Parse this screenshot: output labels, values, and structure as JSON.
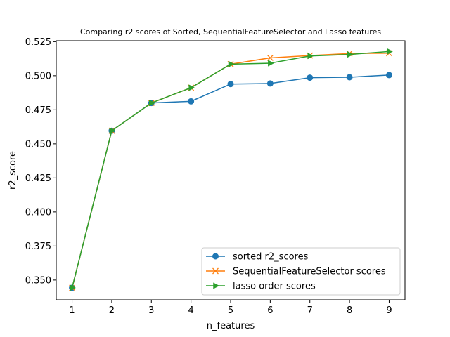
{
  "chart_data": {
    "type": "line",
    "title": "Comparing r2 scores of Sorted, SequentialFeatureSelector and Lasso features",
    "xlabel": "n_features",
    "ylabel": "r2_score",
    "x": [
      1,
      2,
      3,
      4,
      5,
      6,
      7,
      8,
      9
    ],
    "xticks": [
      "1",
      "2",
      "3",
      "4",
      "5",
      "6",
      "7",
      "8",
      "9"
    ],
    "yticks": [
      "0.350",
      "0.375",
      "0.400",
      "0.425",
      "0.450",
      "0.475",
      "0.500",
      "0.525"
    ],
    "xlim": [
      0.6,
      9.4
    ],
    "ylim": [
      0.3355,
      0.5257
    ],
    "grid": false,
    "legend_position": "lower-right",
    "series": [
      {
        "name": "sorted r2_scores",
        "color": "#1f77b4",
        "marker": "circle",
        "values": [
          0.3443,
          0.4596,
          0.48,
          0.4812,
          0.4939,
          0.4943,
          0.4986,
          0.4989,
          0.5005
        ]
      },
      {
        "name": "SequentialFeatureSelector scores",
        "color": "#ff7f0e",
        "marker": "x",
        "values": [
          0.3443,
          0.4596,
          0.48,
          0.4912,
          0.5085,
          0.5131,
          0.5148,
          0.5163,
          0.5165
        ]
      },
      {
        "name": "lasso order scores",
        "color": "#2ca02c",
        "marker": "triangle-right",
        "values": [
          0.3443,
          0.4596,
          0.48,
          0.4912,
          0.5085,
          0.5092,
          0.5145,
          0.5156,
          0.5178
        ]
      }
    ]
  }
}
